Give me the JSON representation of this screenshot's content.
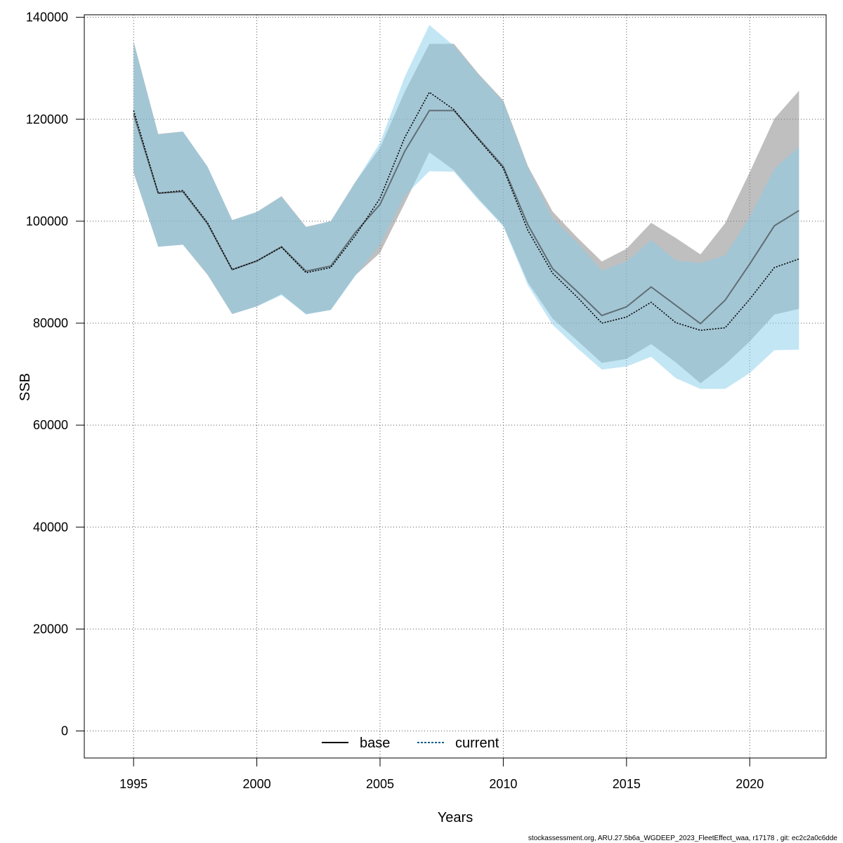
{
  "chart_data": {
    "type": "line",
    "title": "",
    "xlabel": "Years",
    "ylabel": "SSB",
    "xlim": [
      1993,
      2023.1
    ],
    "ylim": [
      -5300,
      140500
    ],
    "x_ticks": [
      1995,
      2000,
      2005,
      2010,
      2015,
      2020
    ],
    "y_ticks": [
      0,
      20000,
      40000,
      60000,
      80000,
      100000,
      120000,
      140000
    ],
    "x_tick_labels": [
      "1995",
      "2000",
      "2005",
      "2010",
      "2015",
      "2020"
    ],
    "y_tick_labels": [
      "0",
      "20000",
      "40000",
      "60000",
      "80000",
      "100000",
      "120000",
      "140000"
    ],
    "grid": true,
    "legend_position": "bottom-center",
    "x": [
      1995,
      1996,
      1997,
      1998,
      1999,
      2000,
      2001,
      2002,
      2003,
      2004,
      2005,
      2006,
      2007,
      2008,
      2009,
      2010,
      2011,
      2012,
      2013,
      2014,
      2015,
      2016,
      2017,
      2018,
      2019,
      2020,
      2021,
      2022
    ],
    "series": [
      {
        "name": "base",
        "style": "solid",
        "line_color": "#000000",
        "band_color": "#808080",
        "values": [
          121000,
          105500,
          105800,
          99500,
          90500,
          92200,
          95000,
          90200,
          91200,
          97800,
          103300,
          113700,
          121700,
          121700,
          116200,
          110700,
          99300,
          90700,
          86200,
          81500,
          83200,
          87100,
          83500,
          79900,
          84500,
          91600,
          99100,
          102100
        ],
        "lower": [
          109500,
          95000,
          95400,
          89500,
          81800,
          83300,
          85700,
          81800,
          82600,
          89400,
          93800,
          103500,
          113500,
          110000,
          104400,
          99200,
          88000,
          80900,
          76600,
          72200,
          73000,
          75900,
          72300,
          68200,
          71900,
          76400,
          81700,
          82800
        ],
        "upper": [
          135300,
          117100,
          117600,
          110700,
          100200,
          101800,
          104900,
          98900,
          100000,
          107700,
          114400,
          125400,
          134800,
          134800,
          128900,
          123700,
          110800,
          101900,
          96800,
          92100,
          94600,
          99700,
          96700,
          93500,
          99600,
          109600,
          120100,
          125600
        ]
      },
      {
        "name": "current",
        "style": "dotted",
        "line_color": "#000000",
        "band_color": "#87ceeb",
        "values": [
          121700,
          105500,
          106000,
          99700,
          90500,
          92200,
          94900,
          89900,
          90900,
          97200,
          104500,
          116400,
          125300,
          121900,
          116000,
          110400,
          98200,
          89800,
          85100,
          80000,
          81200,
          84100,
          80100,
          78600,
          79100,
          84700,
          90900,
          92600
        ],
        "lower": [
          109700,
          95000,
          95400,
          89600,
          81800,
          83300,
          85500,
          81700,
          82600,
          89300,
          95400,
          105000,
          109800,
          109700,
          104100,
          99000,
          87400,
          79700,
          75100,
          70900,
          71500,
          73400,
          69200,
          67100,
          67100,
          70200,
          74700,
          74800
        ],
        "upper": [
          135100,
          117000,
          117600,
          110700,
          100200,
          101800,
          104800,
          98800,
          100000,
          107700,
          115400,
          128300,
          138500,
          134400,
          128700,
          123400,
          110500,
          100600,
          95800,
          90300,
          92100,
          96300,
          92300,
          91800,
          93300,
          100800,
          110300,
          114600
        ]
      }
    ]
  },
  "legend": {
    "base_label": "base",
    "current_label": "current"
  },
  "footer": {
    "caption": "stockassessment.org, ARU.27.5b6a_WGDEEP_2023_FleetEffect_waa, r17178 , git: ec2c2a0c6dde"
  }
}
